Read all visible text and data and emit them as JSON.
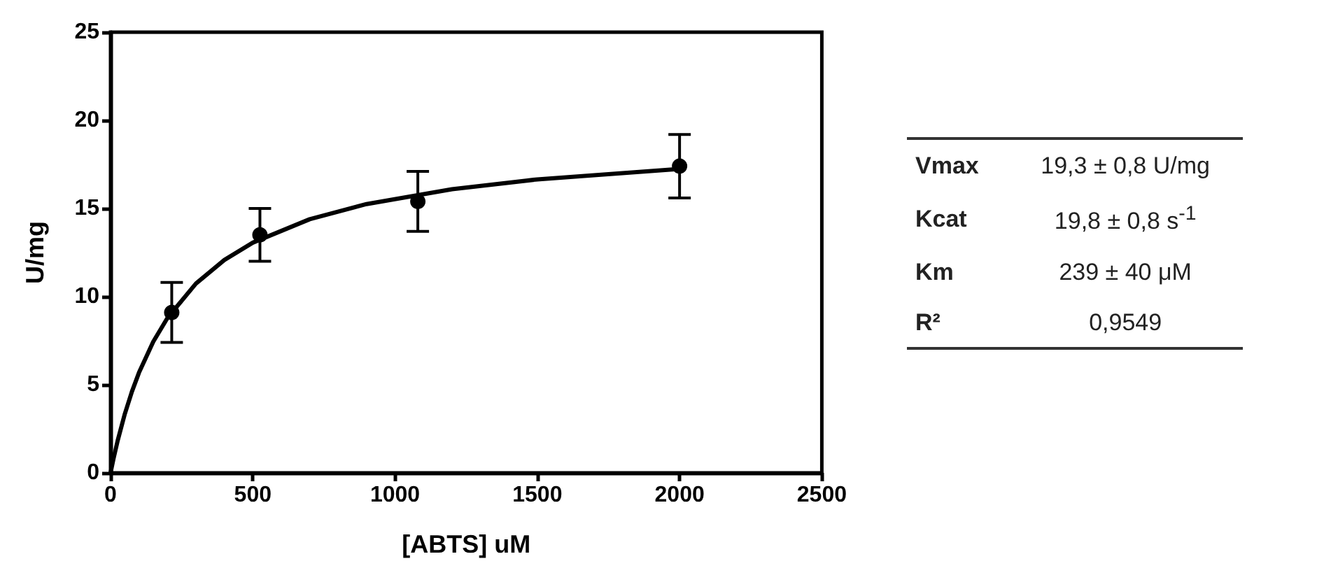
{
  "chart_data": [
    {
      "type": "scatter",
      "xlabel": "[ABTS] uM",
      "ylabel": "U/mg",
      "xlim": [
        0,
        2500
      ],
      "xticks": [
        0,
        500,
        1000,
        1500,
        2000,
        2500
      ],
      "ylim": [
        0,
        25
      ],
      "yticks": [
        0,
        5,
        10,
        15,
        20,
        25
      ],
      "grid": false,
      "marker": "circle",
      "series": [
        {
          "type": "scatter",
          "color": "#000000",
          "x": [
            215,
            525,
            1080,
            2000
          ],
          "values": [
            9.1,
            13.5,
            15.4,
            17.4
          ],
          "errors": [
            1.7,
            1.5,
            1.7,
            1.8
          ]
        },
        {
          "type": "line",
          "color": "#000000",
          "marker": "none",
          "line_style": "solid",
          "x": [
            0,
            10,
            25,
            50,
            75,
            100,
            150,
            200,
            300,
            400,
            500,
            700,
            900,
            1200,
            1500,
            2000
          ],
          "values": [
            0,
            0.78,
            1.83,
            3.34,
            4.61,
            5.69,
            7.44,
            8.79,
            10.74,
            12.08,
            13.06,
            14.39,
            15.25,
            16.09,
            16.65,
            17.24
          ]
        }
      ]
    },
    {
      "type": "other",
      "annotations": [
        "Vmax",
        "19,3 ± 0,8 U/mg",
        "Kcat",
        "19,8 ± 0,8 s$^{-1}$",
        "Km",
        "239 ± 40 μM",
        "R²",
        "0,9549"
      ]
    }
  ]
}
